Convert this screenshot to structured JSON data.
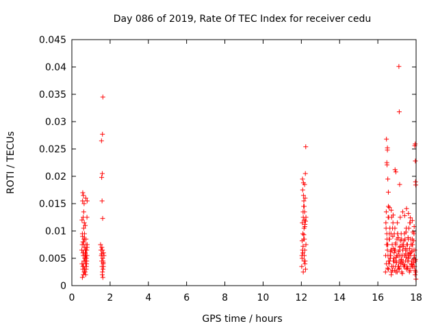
{
  "chart_data": {
    "type": "scatter",
    "title": "Day 086 of 2019, Rate Of TEC Index for receiver cedu",
    "xlabel": "GPS time / hours",
    "ylabel": "ROTI / TECUs",
    "xlim": [
      0,
      18
    ],
    "ylim": [
      0,
      0.045
    ],
    "x_ticks": [
      0,
      2,
      4,
      6,
      8,
      10,
      12,
      14,
      16,
      18
    ],
    "y_ticks": [
      0,
      0.005,
      0.01,
      0.015,
      0.02,
      0.025,
      0.03,
      0.035,
      0.04,
      0.045
    ],
    "x_tick_labels": [
      "0",
      "2",
      "4",
      "6",
      "8",
      "10",
      "12",
      "14",
      "16",
      "18"
    ],
    "y_tick_labels": [
      "0",
      "0.005",
      "0.01",
      "0.015",
      "0.02",
      "0.025",
      "0.03",
      "0.035",
      "0.04",
      "0.045"
    ],
    "marker": "+",
    "color": "#ff0000",
    "grid": false,
    "series": [
      {
        "name": "ROTI",
        "x": [
          0.52,
          0.53,
          0.54,
          0.55,
          0.56,
          0.57,
          0.58,
          0.59,
          0.6,
          0.61,
          0.62,
          0.63,
          0.64,
          0.65,
          0.66,
          0.67,
          0.68,
          0.69,
          0.7,
          0.71,
          0.72,
          0.73,
          0.74,
          0.75,
          0.76,
          0.77,
          0.78,
          0.79,
          0.8,
          0.55,
          0.58,
          0.6,
          0.63,
          0.66,
          0.68,
          0.7,
          0.72,
          0.74,
          0.76,
          0.78,
          0.8,
          0.57,
          0.62,
          0.67,
          0.72,
          0.77,
          0.6,
          0.65,
          0.7,
          0.75,
          0.8,
          0.56,
          0.64,
          0.69,
          0.74,
          0.79,
          0.54,
          0.61,
          0.71,
          0.53,
          0.58,
          0.63,
          0.68,
          0.73,
          0.78,
          1.5,
          1.52,
          1.54,
          1.56,
          1.58,
          1.6,
          1.62,
          1.64,
          1.66,
          1.68,
          1.53,
          1.57,
          1.61,
          1.65,
          1.59,
          1.63,
          1.55,
          1.6,
          1.62,
          1.58,
          1.61,
          1.59,
          1.56,
          1.63,
          1.6,
          1.64,
          1.57,
          12.02,
          12.04,
          12.06,
          12.08,
          12.1,
          12.12,
          12.14,
          12.16,
          12.18,
          12.2,
          12.22,
          12.24,
          12.05,
          12.09,
          12.13,
          12.17,
          12.21,
          12.07,
          12.11,
          12.15,
          12.19,
          12.03,
          12.23,
          12.08,
          12.12,
          12.16,
          12.2,
          12.1,
          12.14,
          12.06,
          12.18,
          12.09,
          12.13,
          12.17,
          12.11,
          12.15,
          12.22,
          12.04,
          12.24,
          12.19,
          16.4,
          16.45,
          16.5,
          16.55,
          16.6,
          16.65,
          16.7,
          16.75,
          16.8,
          16.85,
          16.9,
          16.95,
          17.0,
          17.05,
          17.1,
          17.15,
          17.2,
          17.25,
          17.3,
          17.35,
          17.4,
          17.45,
          17.5,
          17.55,
          17.6,
          17.65,
          17.7,
          17.75,
          17.8,
          17.85,
          17.9,
          17.95,
          16.42,
          16.48,
          16.53,
          16.58,
          16.63,
          16.68,
          16.73,
          16.78,
          16.83,
          16.88,
          16.93,
          16.98,
          17.03,
          17.08,
          17.13,
          17.18,
          17.23,
          17.28,
          17.33,
          17.38,
          17.43,
          17.48,
          17.53,
          17.58,
          17.63,
          17.68,
          17.73,
          17.78,
          17.83,
          17.88,
          17.93,
          17.97,
          16.44,
          16.52,
          16.62,
          16.72,
          16.82,
          16.92,
          17.02,
          17.12,
          17.22,
          17.32,
          17.42,
          17.52,
          17.62,
          17.72,
          17.82,
          17.92,
          16.47,
          16.57,
          16.67,
          16.77,
          16.87,
          16.97,
          17.07,
          17.17,
          17.27,
          17.37,
          17.47,
          17.57,
          17.67,
          17.77,
          17.87,
          17.96,
          16.41,
          16.51,
          16.61,
          16.71,
          16.81,
          16.91,
          17.01,
          17.11,
          17.21,
          17.31,
          17.41,
          17.51,
          17.61,
          17.71,
          17.81,
          17.91,
          16.46,
          16.56,
          16.66,
          16.76,
          16.86,
          16.96,
          17.06,
          17.16,
          17.26,
          17.36,
          17.46,
          17.56,
          17.66,
          17.76,
          17.86,
          17.94,
          16.43,
          16.49,
          16.54,
          16.59,
          16.64,
          16.69,
          16.74,
          16.79,
          16.84,
          16.89,
          16.94,
          16.99,
          17.04,
          17.09,
          17.14,
          17.19,
          17.24,
          17.29,
          17.34,
          17.39,
          17.44,
          17.49,
          17.54,
          17.59,
          17.64,
          17.69,
          17.74,
          17.79,
          17.84,
          17.89,
          17.95,
          17.99,
          16.45,
          16.5,
          16.47,
          16.48,
          16.52,
          16.55,
          16.9,
          16.94,
          17.1,
          17.12,
          17.14,
          17.95,
          17.93,
          17.96,
          17.97,
          17.98,
          16.6,
          16.7,
          16.8,
          16.5,
          16.55,
          17.3,
          17.4,
          17.5,
          17.6,
          17.7,
          17.8,
          17.9
        ],
        "y": [
          0.0065,
          0.012,
          0.004,
          0.0095,
          0.0155,
          0.003,
          0.008,
          0.0125,
          0.002,
          0.006,
          0.0105,
          0.0045,
          0.015,
          0.007,
          0.003,
          0.0085,
          0.0055,
          0.0025,
          0.011,
          0.0065,
          0.004,
          0.016,
          0.0075,
          0.0035,
          0.005,
          0.0045,
          0.0065,
          0.0125,
          0.0155,
          0.0015,
          0.0035,
          0.0055,
          0.0075,
          0.0095,
          0.0025,
          0.0045,
          0.0065,
          0.0085,
          0.0035,
          0.0055,
          0.0075,
          0.017,
          0.0135,
          0.005,
          0.002,
          0.004,
          0.0165,
          0.0115,
          0.006,
          0.003,
          0.007,
          0.009,
          0.0025,
          0.0045,
          0.0065,
          0.0055,
          0.0075,
          0.0035,
          0.005,
          0.004,
          0.006,
          0.0085,
          0.003,
          0.0055,
          0.0045,
          0.0075,
          0.0065,
          0.0055,
          0.0045,
          0.0035,
          0.0025,
          0.0015,
          0.004,
          0.006,
          0.0055,
          0.0065,
          0.007,
          0.005,
          0.0035,
          0.002,
          0.003,
          0.0265,
          0.0277,
          0.0345,
          0.0155,
          0.0123,
          0.0205,
          0.0198,
          0.0045,
          0.0065,
          0.0042,
          0.0058,
          0.0035,
          0.005,
          0.0065,
          0.0095,
          0.0125,
          0.0145,
          0.0105,
          0.0085,
          0.0065,
          0.0045,
          0.003,
          0.0075,
          0.0115,
          0.0135,
          0.0155,
          0.0185,
          0.0205,
          0.0175,
          0.0165,
          0.0145,
          0.004,
          0.0055,
          0.0254,
          0.006,
          0.0085,
          0.012,
          0.016,
          0.0025,
          0.0045,
          0.0195,
          0.0108,
          0.0072,
          0.0093,
          0.0135,
          0.0188,
          0.0055,
          0.0118,
          0.0082,
          0.0125,
          0.0112,
          0.0025,
          0.004,
          0.0065,
          0.003,
          0.0095,
          0.005,
          0.002,
          0.0075,
          0.0035,
          0.006,
          0.0045,
          0.0025,
          0.0085,
          0.0055,
          0.003,
          0.007,
          0.004,
          0.0025,
          0.0065,
          0.0035,
          0.0055,
          0.0045,
          0.003,
          0.0075,
          0.005,
          0.0025,
          0.006,
          0.004,
          0.0085,
          0.0035,
          0.0055,
          0.002,
          0.0115,
          0.0085,
          0.0055,
          0.004,
          0.0105,
          0.0065,
          0.0035,
          0.009,
          0.005,
          0.0028,
          0.0078,
          0.0042,
          0.0095,
          0.0062,
          0.0032,
          0.0082,
          0.0048,
          0.0022,
          0.0072,
          0.0038,
          0.0068,
          0.0052,
          0.0035,
          0.0088,
          0.0058,
          0.0028,
          0.0075,
          0.0045,
          0.0098,
          0.0042,
          0.0065,
          0.0025,
          0.0135,
          0.0075,
          0.0045,
          0.0125,
          0.0068,
          0.0035,
          0.0115,
          0.0055,
          0.0095,
          0.0045,
          0.0085,
          0.0065,
          0.0105,
          0.0055,
          0.0075,
          0.0035,
          0.0095,
          0.0125,
          0.0055,
          0.0105,
          0.0065,
          0.0045,
          0.0088,
          0.0125,
          0.0075,
          0.0038,
          0.0098,
          0.0058,
          0.0115,
          0.0062,
          0.0082,
          0.0048,
          0.0055,
          0.0032,
          0.0085,
          0.0025,
          0.0045,
          0.0065,
          0.0025,
          0.0045,
          0.0055,
          0.0065,
          0.0035,
          0.0075,
          0.0045,
          0.0085,
          0.0035,
          0.0055,
          0.0075,
          0.0045,
          0.0062,
          0.0028,
          0.0095,
          0.0052,
          0.0035,
          0.0072,
          0.0042,
          0.0082,
          0.0058,
          0.0032,
          0.0068,
          0.0038,
          0.0048,
          0.0028,
          0.0105,
          0.0075,
          0.0125,
          0.0085,
          0.0055,
          0.0095,
          0.0065,
          0.0115,
          0.0045,
          0.0105,
          0.0075,
          0.0055,
          0.0095,
          0.0035,
          0.0065,
          0.0045,
          0.0085,
          0.0055,
          0.0075,
          0.0095,
          0.0065,
          0.0105,
          0.0045,
          0.0085,
          0.0055,
          0.0115,
          0.0035,
          0.0075,
          0.0065,
          0.0095,
          0.0045,
          0.0012,
          0.0268,
          0.0252,
          0.0225,
          0.0221,
          0.0195,
          0.0171,
          0.0212,
          0.0208,
          0.0401,
          0.0318,
          0.0185,
          0.0259,
          0.0256,
          0.0228,
          0.019,
          0.0184,
          0.0143,
          0.0138,
          0.0129,
          0.0248,
          0.0145,
          0.0135,
          0.0128,
          0.0141,
          0.0132,
          0.0124,
          0.0119,
          0.0108
        ]
      }
    ]
  }
}
